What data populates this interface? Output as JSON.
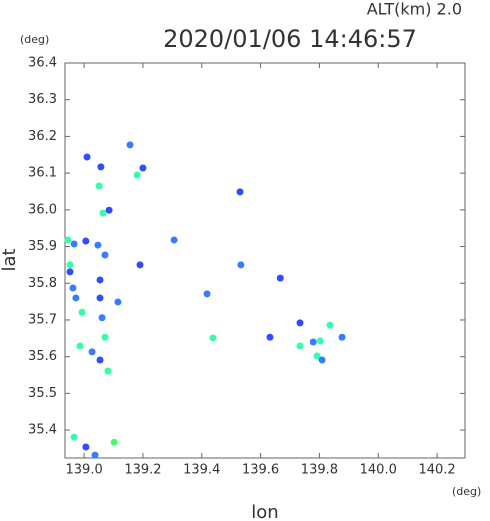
{
  "chart_data": {
    "type": "scatter",
    "title": "2020/01/06 14:46:57",
    "subtitle": "ALT(km) 2.0",
    "y_unit": "(deg)",
    "x_unit": "(deg)",
    "xlabel": "lon",
    "ylabel": "lat",
    "xlim": [
      138.935,
      140.295
    ],
    "ylim": [
      35.324,
      36.4
    ],
    "xticks": [
      {
        "value": 139.0,
        "label": "139.0"
      },
      139.2,
      139.4,
      139.6,
      139.8,
      {
        "value": 140.0,
        "label": "140.0"
      },
      140.2
    ],
    "yticks": [
      35.4,
      35.5,
      35.6,
      35.7,
      35.8,
      35.9,
      {
        "value": 36.0,
        "label": "36.0"
      },
      36.1,
      36.2,
      36.3,
      36.4
    ],
    "x": [
      139.01,
      139.057,
      139.156,
      139.2,
      139.18,
      139.051,
      139.085,
      139.064,
      138.945,
      138.966,
      139.006,
      139.047,
      139.071,
      138.952,
      138.952,
      138.962,
      138.972,
      138.993,
      139.054,
      139.054,
      139.061,
      139.071,
      138.986,
      139.027,
      139.054,
      139.081,
      138.966,
      139.006,
      139.037,
      139.102,
      139.19,
      139.306,
      139.53,
      139.418,
      139.533,
      139.438,
      139.632,
      139.667,
      139.734,
      139.779,
      139.803,
      139.792,
      139.809,
      139.836,
      139.877,
      139.734,
      139.115
    ],
    "y": [
      36.144,
      36.117,
      36.177,
      36.114,
      36.095,
      36.065,
      35.999,
      35.991,
      35.918,
      35.907,
      35.915,
      35.904,
      35.877,
      35.85,
      35.831,
      35.787,
      35.76,
      35.721,
      35.809,
      35.76,
      35.706,
      35.653,
      35.629,
      35.613,
      35.591,
      35.561,
      35.381,
      35.354,
      35.332,
      35.367,
      35.85,
      35.918,
      36.049,
      35.771,
      35.85,
      35.651,
      35.653,
      35.814,
      35.692,
      35.64,
      35.643,
      35.602,
      35.591,
      35.686,
      35.653,
      35.629,
      35.749
    ],
    "colors": [
      "#2f4cff",
      "#2f4cff",
      "#3a7cff",
      "#2f4cff",
      "#33ffaa",
      "#33ffaa",
      "#2f4cff",
      "#33ffaa",
      "#33ffaa",
      "#3a7cff",
      "#2f4cff",
      "#3a7cff",
      "#3a7cff",
      "#33ffaa",
      "#2f4cff",
      "#3a7cff",
      "#3a7cff",
      "#33ffaa",
      "#2f4cff",
      "#2f4cff",
      "#3a7cff",
      "#33ffaa",
      "#33ffaa",
      "#3a7cff",
      "#2f4cff",
      "#33ffaa",
      "#33ffaa",
      "#2f4cff",
      "#3a7cff",
      "#44ff66",
      "#2f4cff",
      "#3a7cff",
      "#2f4cff",
      "#3a7cff",
      "#3a7cff",
      "#33ffaa",
      "#2f4cff",
      "#2f4cff",
      "#2f4cff",
      "#3a7cff",
      "#33ffaa",
      "#33ffaa",
      "#3a7cff",
      "#33ffaa",
      "#3a7cff",
      "#33ffaa",
      "#3a7cff"
    ]
  }
}
